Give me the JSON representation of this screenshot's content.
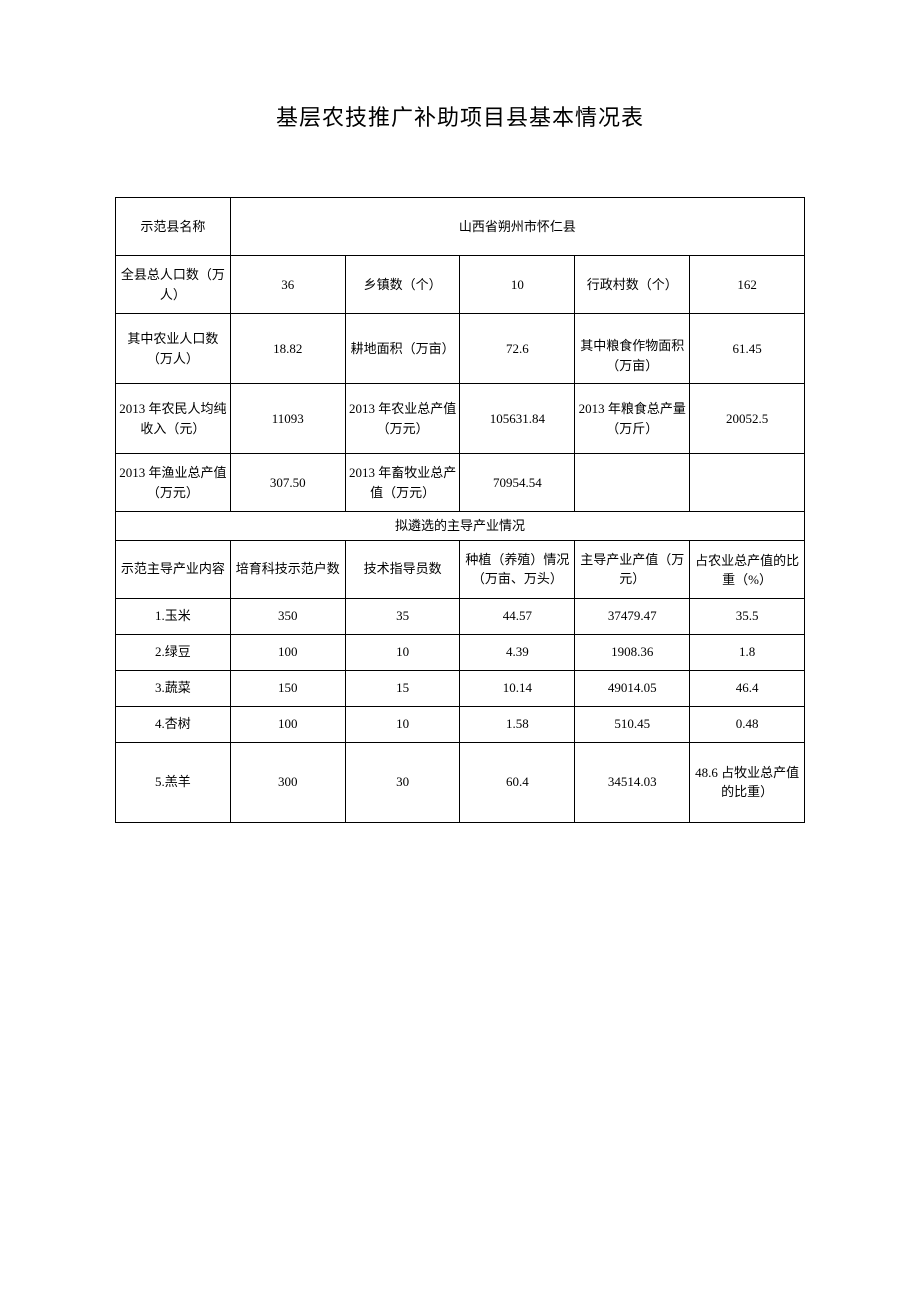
{
  "title": "基层农技推广补助项目县基本情况表",
  "header": {
    "county_label": "示范县名称",
    "county_name": "山西省朔州市怀仁县"
  },
  "stats": {
    "r1": {
      "c1_label": "全县总人口数（万人）",
      "c1_value": "36",
      "c2_label": "乡镇数（个）",
      "c2_value": "10",
      "c3_label": "行政村数（个）",
      "c3_value": "162"
    },
    "r2": {
      "c1_label": "其中农业人口数（万人）",
      "c1_value": "18.82",
      "c2_label": "耕地面积（万亩）",
      "c2_value": "72.6",
      "c3_label": "其中粮食作物面积（万亩）",
      "c3_value": "61.45"
    },
    "r3": {
      "c1_label": "2013 年农民人均纯收入（元）",
      "c1_value": "11093",
      "c2_label": "2013 年农业总产值（万元）",
      "c2_value": "105631.84",
      "c3_label": "2013 年粮食总产量（万斤）",
      "c3_value": "20052.5"
    },
    "r4": {
      "c1_label": "2013 年渔业总产值（万元）",
      "c1_value": "307.50",
      "c2_label": "2013 年畜牧业总产值（万元）",
      "c2_value": "70954.54",
      "c3_label": "",
      "c3_value": ""
    }
  },
  "section_title": "拟遴选的主导产业情况",
  "industry_headers": {
    "h1": "示范主导产业内容",
    "h2": "培育科技示范户数",
    "h3": "技术指导员数",
    "h4": "种植（养殖）情况（万亩、万头）",
    "h5": "主导产业产值（万元）",
    "h6": "占农业总产值的比重（%）"
  },
  "industries": [
    {
      "name": "1.玉米",
      "households": "350",
      "instructors": "35",
      "area": "44.57",
      "value": "37479.47",
      "ratio": "35.5"
    },
    {
      "name": "2.绿豆",
      "households": "100",
      "instructors": "10",
      "area": "4.39",
      "value": "1908.36",
      "ratio": "1.8"
    },
    {
      "name": "3.蔬菜",
      "households": "150",
      "instructors": "15",
      "area": "10.14",
      "value": "49014.05",
      "ratio": "46.4"
    },
    {
      "name": "4.杏树",
      "households": "100",
      "instructors": "10",
      "area": "1.58",
      "value": "510.45",
      "ratio": "0.48"
    },
    {
      "name": "5.羔羊",
      "households": "300",
      "instructors": "30",
      "area": "60.4",
      "value": "34514.03",
      "ratio": "48.6 占牧业总产值的比重）"
    }
  ]
}
